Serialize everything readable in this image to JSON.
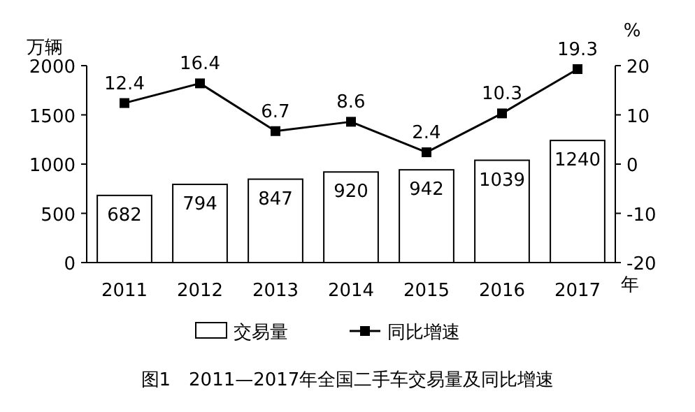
{
  "chart_data": {
    "type": "bar",
    "title": "图1　2011—2017年全国二手车交易量及同比增速",
    "xlabel": "年",
    "ylabel": "万辆",
    "y2label": "%",
    "categories": [
      "2011",
      "2012",
      "2013",
      "2014",
      "2015",
      "2016",
      "2017"
    ],
    "series": [
      {
        "name": "交易量",
        "color": "#ffffff",
        "values": [
          682,
          794,
          847,
          920,
          942,
          1039,
          1240
        ]
      },
      {
        "name": "同比增速",
        "type": "line",
        "axis": "y2",
        "color": "#000000",
        "marker": "square",
        "line_style": "solid",
        "values": [
          12.4,
          16.4,
          6.7,
          8.6,
          2.4,
          10.3,
          19.3
        ]
      }
    ],
    "ylim": [
      0,
      2000
    ],
    "yticks": [
      0,
      500,
      1000,
      1500,
      2000
    ],
    "y2lim": [
      -20,
      20
    ],
    "y2ticks": [
      -20,
      -10,
      0,
      10,
      20
    ],
    "data_labels": true,
    "legend": "bottom",
    "grid": false
  }
}
